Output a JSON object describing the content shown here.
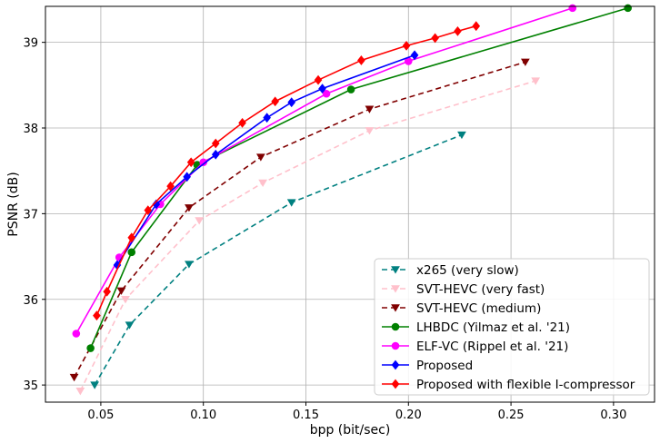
{
  "chart_data": {
    "type": "line",
    "title": "",
    "xlabel": "bpp (bit/sec)",
    "ylabel": "PSNR (dB)",
    "xlim": [
      0.023,
      0.32
    ],
    "ylim": [
      34.8,
      39.42
    ],
    "xticks": [
      0.05,
      0.1,
      0.15,
      0.2,
      0.25,
      0.3
    ],
    "xtick_labels": [
      "0.05",
      "0.10",
      "0.15",
      "0.20",
      "0.25",
      "0.30"
    ],
    "yticks": [
      35,
      36,
      37,
      38,
      39
    ],
    "ytick_labels": [
      "35",
      "36",
      "37",
      "38",
      "39"
    ],
    "grid": true,
    "legend_position": "lower-right",
    "series": [
      {
        "name": "x265 (very slow)",
        "color": "#008080",
        "dash": "6,4",
        "marker": "triangle-down",
        "x": [
          0.047,
          0.064,
          0.093,
          0.143,
          0.226
        ],
        "y": [
          35.0,
          35.7,
          36.41,
          37.13,
          37.92
        ]
      },
      {
        "name": "SVT-HEVC (very fast)",
        "color": "#ffc0cb",
        "dash": "6,4",
        "marker": "triangle-down",
        "x": [
          0.04,
          0.062,
          0.098,
          0.129,
          0.181,
          0.262
        ],
        "y": [
          34.93,
          36.0,
          36.92,
          37.36,
          37.97,
          38.55
        ]
      },
      {
        "name": "SVT-HEVC (medium)",
        "color": "#800000",
        "dash": "6,4",
        "marker": "triangle-down",
        "x": [
          0.037,
          0.06,
          0.093,
          0.128,
          0.181,
          0.257
        ],
        "y": [
          35.09,
          36.1,
          37.07,
          37.66,
          38.22,
          38.77
        ]
      },
      {
        "name": "LHBDC (Yilmaz et al. '21)",
        "color": "#008000",
        "dash": "",
        "marker": "circle",
        "x": [
          0.045,
          0.065,
          0.097,
          0.172,
          0.307
        ],
        "y": [
          35.43,
          36.55,
          37.57,
          38.45,
          39.4
        ]
      },
      {
        "name": "ELF-VC (Rippel et al. '21)",
        "color": "#ff00ff",
        "dash": "",
        "marker": "circle",
        "x": [
          0.038,
          0.059,
          0.079,
          0.1,
          0.16,
          0.2,
          0.28
        ],
        "y": [
          35.6,
          36.49,
          37.11,
          37.6,
          38.4,
          38.78,
          39.4
        ]
      },
      {
        "name": "Proposed",
        "color": "#0000ff",
        "dash": "",
        "marker": "diamond",
        "x": [
          0.058,
          0.077,
          0.092,
          0.106,
          0.131,
          0.143,
          0.158,
          0.203
        ],
        "y": [
          36.4,
          37.11,
          37.43,
          37.69,
          38.12,
          38.3,
          38.46,
          38.85
        ]
      },
      {
        "name": "Proposed with flexible I-compressor",
        "color": "#ff0000",
        "dash": "",
        "marker": "diamond",
        "x": [
          0.048,
          0.053,
          0.065,
          0.073,
          0.084,
          0.094,
          0.106,
          0.119,
          0.135,
          0.156,
          0.177,
          0.199,
          0.213,
          0.224,
          0.233
        ],
        "y": [
          35.81,
          36.09,
          36.72,
          37.04,
          37.32,
          37.6,
          37.82,
          38.06,
          38.31,
          38.56,
          38.79,
          38.96,
          39.05,
          39.13,
          39.19
        ]
      }
    ]
  }
}
